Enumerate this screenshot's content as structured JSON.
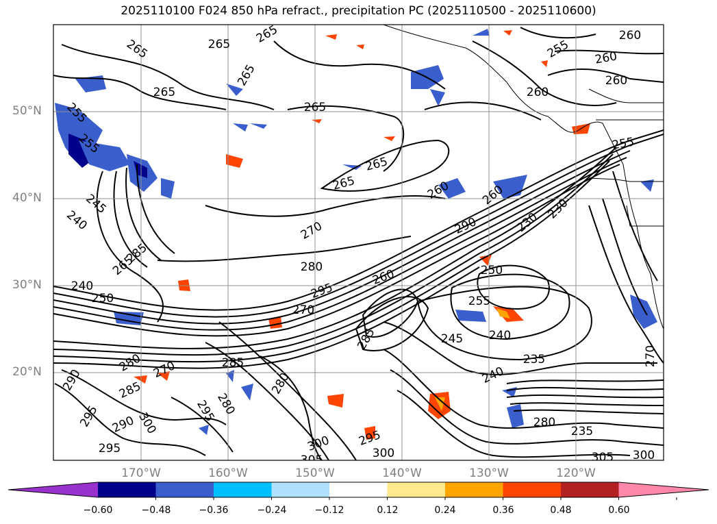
{
  "title": "2025110100 F024 850 hPa refract., precipitation PC (2025110500 - 2025110600)",
  "map": {
    "variable": "850 hPa refractivity",
    "shaded_variable": "precipitation PC",
    "lat_labels": [
      "50°N",
      "40°N",
      "30°N",
      "20°N"
    ],
    "lon_labels": [
      "170°W",
      "160°W",
      "150°W",
      "140°W",
      "130°W",
      "120°W"
    ],
    "contour_labels": [
      "265",
      "265",
      "265",
      "265",
      "265",
      "265",
      "255",
      "260",
      "260",
      "260",
      "260",
      "255",
      "255",
      "265",
      "265",
      "260",
      "260",
      "245",
      "240",
      "240",
      "230",
      "270",
      "265",
      "280",
      "270",
      "290",
      "295",
      "250",
      "255",
      "245",
      "240",
      "235",
      "240",
      "250",
      "230",
      "280",
      "290",
      "285",
      "285",
      "285",
      "270",
      "285",
      "280",
      "300",
      "295",
      "290",
      "295",
      "300",
      "305",
      "300",
      "295",
      "280",
      "235",
      "305",
      "300",
      "295",
      "280",
      "270",
      "255",
      "260"
    ]
  },
  "colorbar": {
    "ticks": [
      "−0.60",
      "−0.48",
      "−0.36",
      "−0.24",
      "−0.12",
      "0.12",
      "0.24",
      "0.36",
      "0.48",
      "0.60"
    ],
    "colors": [
      "#9932cc",
      "#00008b",
      "#3a5fcd",
      "#00bfff",
      "#b0e2ff",
      "#ffffff",
      "#ffe98c",
      "#ffa500",
      "#ff4500",
      "#b22222",
      "#ff88aa"
    ]
  }
}
